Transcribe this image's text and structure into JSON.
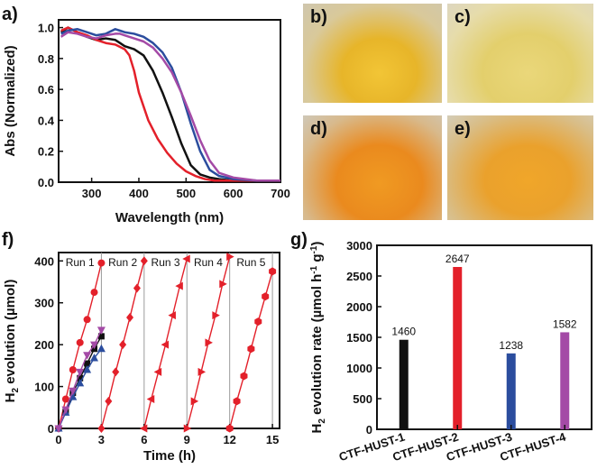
{
  "panels": {
    "a": "a)",
    "b": "b)",
    "c": "c)",
    "d": "d)",
    "e": "e)",
    "f": "f)",
    "g": "g)"
  },
  "colors": {
    "black": "#111111",
    "red": "#e3202a",
    "blue": "#2b4d9e",
    "purple": "#a44aa6",
    "grid": "#9a9a9a"
  },
  "chart_data": [
    {
      "id": "a",
      "type": "line",
      "xlabel": "Wavelength (nm)",
      "ylabel": "Abs (Normalized)",
      "xlim": [
        230,
        700
      ],
      "ylim": [
        0,
        1.05
      ],
      "xticks": [
        300,
        400,
        500,
        600,
        700
      ],
      "yticks": [
        0.0,
        0.2,
        0.4,
        0.6,
        0.8,
        1.0
      ],
      "yticklabels": [
        "0.0",
        "0.2",
        "0.4",
        "0.6",
        "0.8",
        "1.0"
      ],
      "series": [
        {
          "color": "black",
          "x": [
            235,
            250,
            270,
            290,
            310,
            330,
            350,
            360,
            370,
            390,
            410,
            430,
            450,
            470,
            490,
            510,
            530,
            550,
            570,
            600,
            650,
            700
          ],
          "y": [
            0.97,
            1.0,
            0.97,
            0.94,
            0.92,
            0.93,
            0.92,
            0.9,
            0.88,
            0.86,
            0.82,
            0.72,
            0.58,
            0.42,
            0.25,
            0.11,
            0.05,
            0.03,
            0.02,
            0.01,
            0.01,
            0.01
          ]
        },
        {
          "color": "red",
          "x": [
            235,
            250,
            270,
            290,
            310,
            330,
            350,
            370,
            380,
            390,
            400,
            420,
            440,
            460,
            480,
            500,
            520,
            540,
            560,
            600,
            650,
            700
          ],
          "y": [
            0.98,
            1.0,
            0.97,
            0.95,
            0.92,
            0.9,
            0.89,
            0.86,
            0.82,
            0.72,
            0.58,
            0.4,
            0.28,
            0.19,
            0.12,
            0.07,
            0.04,
            0.02,
            0.01,
            0.01,
            0.01,
            0.01
          ]
        },
        {
          "color": "blue",
          "x": [
            235,
            250,
            270,
            290,
            310,
            330,
            350,
            360,
            370,
            390,
            410,
            430,
            450,
            470,
            490,
            510,
            530,
            550,
            570,
            600,
            650,
            700
          ],
          "y": [
            0.96,
            0.98,
            0.99,
            0.97,
            0.95,
            0.96,
            0.99,
            0.98,
            0.97,
            0.96,
            0.94,
            0.9,
            0.84,
            0.74,
            0.58,
            0.38,
            0.2,
            0.08,
            0.04,
            0.02,
            0.01,
            0.01
          ]
        },
        {
          "color": "purple",
          "x": [
            235,
            250,
            270,
            290,
            310,
            330,
            350,
            360,
            370,
            390,
            410,
            430,
            450,
            470,
            490,
            510,
            530,
            550,
            570,
            600,
            650,
            700
          ],
          "y": [
            0.94,
            0.97,
            0.96,
            0.94,
            0.93,
            0.95,
            0.96,
            0.96,
            0.95,
            0.93,
            0.91,
            0.87,
            0.8,
            0.71,
            0.58,
            0.43,
            0.27,
            0.14,
            0.06,
            0.03,
            0.01,
            0.01
          ]
        }
      ]
    },
    {
      "id": "f",
      "type": "scatter",
      "xlabel": "Time (h)",
      "ylabel": "H2 evolution (µmol)",
      "xlim": [
        0,
        15.5
      ],
      "ylim": [
        0,
        420
      ],
      "xticks": [
        0,
        3,
        6,
        9,
        12,
        15
      ],
      "yticks": [
        0,
        100,
        200,
        300,
        400
      ],
      "run_lines": [
        3,
        6,
        9,
        12,
        15
      ],
      "run_labels": [
        {
          "x": 1.5,
          "text": "Run 1"
        },
        {
          "x": 4.5,
          "text": "Run 2"
        },
        {
          "x": 7.5,
          "text": "Run 3"
        },
        {
          "x": 10.5,
          "text": "Run 4"
        },
        {
          "x": 13.5,
          "text": "Run 5"
        }
      ],
      "series": [
        {
          "color": "red",
          "marker": "circle",
          "x": [
            0,
            0.5,
            1,
            1.5,
            2,
            2.5,
            3
          ],
          "y": [
            0,
            70,
            140,
            205,
            260,
            325,
            395
          ]
        },
        {
          "color": "red",
          "marker": "diamond",
          "x": [
            3,
            3.5,
            4,
            4.5,
            5,
            5.5,
            6
          ],
          "y": [
            0,
            65,
            135,
            200,
            265,
            335,
            400
          ]
        },
        {
          "color": "red",
          "marker": "triangle-left",
          "x": [
            6,
            6.5,
            7,
            7.5,
            8,
            8.5,
            9
          ],
          "y": [
            0,
            70,
            135,
            200,
            270,
            340,
            405
          ]
        },
        {
          "color": "red",
          "marker": "triangle-right",
          "x": [
            9,
            9.5,
            10,
            10.5,
            11,
            11.5,
            12
          ],
          "y": [
            0,
            65,
            135,
            205,
            270,
            345,
            410
          ]
        },
        {
          "color": "red",
          "marker": "hexagon",
          "x": [
            12,
            12.5,
            13,
            13.5,
            14,
            14.5,
            15
          ],
          "y": [
            0,
            65,
            125,
            190,
            255,
            315,
            375
          ]
        },
        {
          "color": "black",
          "marker": "square",
          "x": [
            0,
            0.5,
            1,
            1.5,
            2,
            2.5,
            3
          ],
          "y": [
            0,
            40,
            85,
            120,
            155,
            190,
            220
          ]
        },
        {
          "color": "blue",
          "marker": "triangle-up",
          "x": [
            0,
            0.5,
            1,
            1.5,
            2,
            2.5,
            3
          ],
          "y": [
            0,
            38,
            75,
            108,
            140,
            168,
            190
          ]
        },
        {
          "color": "purple",
          "marker": "triangle-down",
          "x": [
            0,
            0.5,
            1,
            1.5,
            2,
            2.5,
            3
          ],
          "y": [
            0,
            45,
            90,
            135,
            175,
            200,
            235
          ]
        }
      ]
    },
    {
      "id": "g",
      "type": "bar",
      "ylabel": "H2 evolution rate (µmol h-1 g-1)",
      "ylim": [
        0,
        3000
      ],
      "yticks": [
        0,
        500,
        1000,
        1500,
        2000,
        2500,
        3000
      ],
      "categories": [
        "CTF-HUST-1",
        "CTF-HUST-2",
        "CTF-HUST-3",
        "CTF-HUST-4"
      ],
      "values": [
        1460,
        2647,
        1238,
        1582
      ],
      "value_labels": [
        "1460",
        "2647",
        "1238",
        "1582"
      ],
      "bar_colors": [
        "black",
        "red",
        "blue",
        "purple"
      ]
    }
  ]
}
